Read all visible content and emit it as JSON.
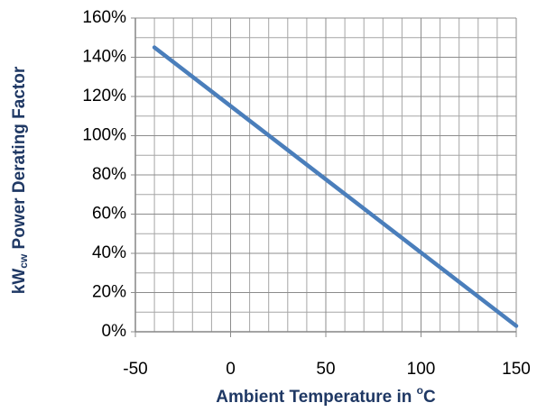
{
  "chart_data": {
    "type": "line",
    "x_title_parts": [
      "Ambient Temperature in ",
      "o",
      "C"
    ],
    "y_title_parts": [
      "kW",
      "cw",
      " Power Derating Factor"
    ],
    "x": [
      -40,
      150
    ],
    "series": [
      {
        "color": "#4a7ebb",
        "values": [
          145,
          3
        ]
      }
    ],
    "xlim": [
      -50,
      150
    ],
    "xticks": [
      -50,
      0,
      50,
      100,
      150
    ],
    "x_minor_ticks": [
      -40,
      -30,
      -20,
      -10,
      10,
      20,
      30,
      40,
      60,
      70,
      80,
      90,
      110,
      120,
      130,
      140
    ],
    "ylim": [
      0,
      160
    ],
    "yticks": [
      {
        "value": 0,
        "label": "0%"
      },
      {
        "value": 20,
        "label": "20%"
      },
      {
        "value": 40,
        "label": "40%"
      },
      {
        "value": 60,
        "label": "60%"
      },
      {
        "value": 80,
        "label": "80%"
      },
      {
        "value": 100,
        "label": "100%"
      },
      {
        "value": 120,
        "label": "120%"
      },
      {
        "value": 140,
        "label": "140%"
      },
      {
        "value": 160,
        "label": "160%"
      }
    ],
    "y_minor_ticks": [
      10,
      30,
      50,
      70,
      90,
      110,
      130,
      150
    ],
    "grid": true
  }
}
